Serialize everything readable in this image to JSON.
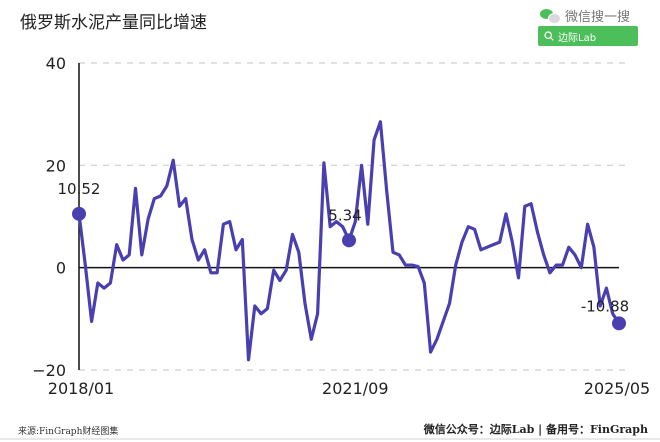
{
  "header": {
    "title": "俄罗斯水泥产量同比增速",
    "wechat_label": "微信搜一搜",
    "search_label": "边际Lab"
  },
  "footer": {
    "source": "来源:FinGraph财经图集",
    "credit": "微信公众号：边际Lab  |  备用号：FinGraph"
  },
  "colors": {
    "line": "#4a3fb0",
    "grid": "#cfcfcf",
    "axis": "#111111",
    "wechat_green": "#4cbf5a"
  },
  "chart_data": {
    "type": "line",
    "title": "俄罗斯水泥产量同比增速",
    "xlabel": "",
    "ylabel": "",
    "ylim": [
      -20,
      40
    ],
    "yticks": [
      -20,
      0,
      20,
      40
    ],
    "xtick_labels": [
      "2018/01",
      "2021/09",
      "2025/05"
    ],
    "x_start": "2018/01",
    "x_end": "2025/05",
    "grid": "horizontal dashed",
    "annotations": [
      {
        "label": "10.52",
        "x": "2018/01",
        "value": 10.52
      },
      {
        "label": "5.34",
        "x": "2021/09",
        "value": 5.34
      },
      {
        "label": "-10.88",
        "x": "2025/05",
        "value": -10.88
      }
    ],
    "series": [
      {
        "name": "俄罗斯水泥产量同比增速",
        "values": [
          10.52,
          0.5,
          -10.5,
          -3.0,
          -4.0,
          -3.0,
          4.5,
          1.5,
          2.5,
          15.5,
          2.5,
          9.5,
          13.5,
          14.0,
          16.0,
          21.0,
          12.0,
          13.5,
          5.5,
          1.5,
          3.5,
          -1.0,
          -1.0,
          8.5,
          9.0,
          3.5,
          5.5,
          -18.0,
          -7.5,
          -9.0,
          -8.0,
          -0.5,
          -2.5,
          -0.5,
          6.5,
          3.0,
          -7.0,
          -14.0,
          -9.0,
          20.5,
          8.0,
          9.0,
          8.0,
          5.34,
          9.0,
          20.0,
          8.5,
          25.0,
          28.5,
          15.0,
          3.0,
          2.5,
          0.5,
          0.5,
          0.2,
          -3.0,
          -16.5,
          -14.0,
          -10.5,
          -7.0,
          0.5,
          5.0,
          8.0,
          7.5,
          3.5,
          4.0,
          4.5,
          5.0,
          10.5,
          5.0,
          -2.0,
          12.0,
          12.5,
          7.0,
          2.5,
          -1.0,
          0.5,
          0.5,
          4.0,
          2.5,
          0.0,
          8.5,
          4.0,
          -7.5,
          -4.0,
          -9.0,
          -10.88
        ]
      }
    ]
  }
}
